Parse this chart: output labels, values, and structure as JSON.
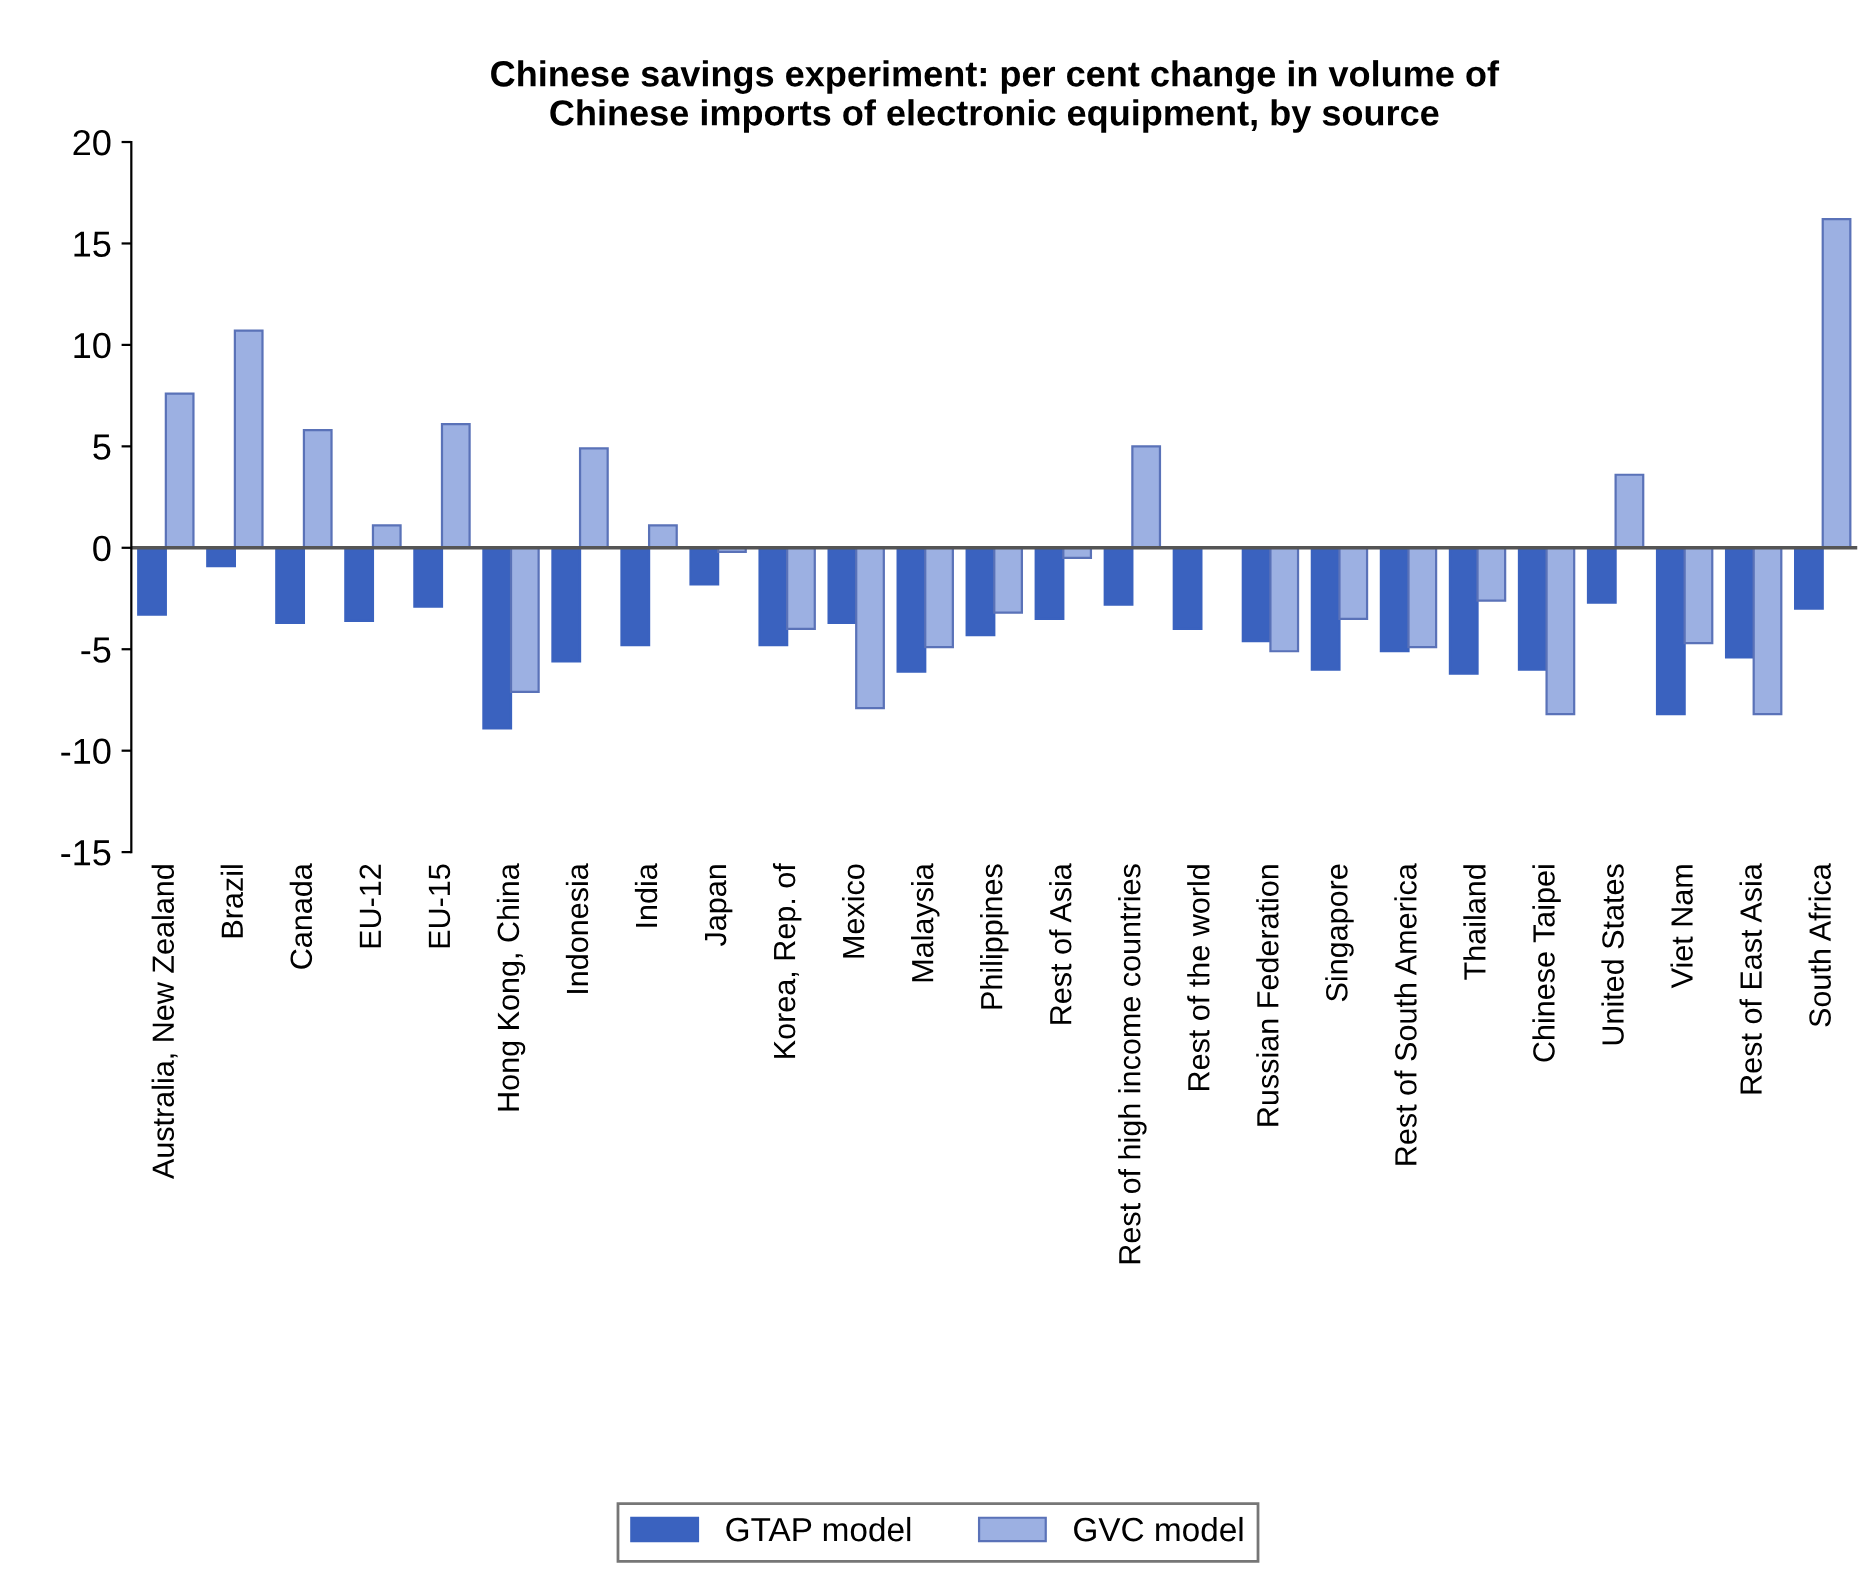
{
  "chart_data": {
    "type": "bar",
    "title": "Chinese savings experiment: per cent change in volume of\nChinese imports of electronic equipment, by source",
    "categories": [
      "Australia, New Zealand",
      "Brazil",
      "Canada",
      "EU-12",
      "EU-15",
      "Hong Kong, China",
      "Indonesia",
      "India",
      "Japan",
      "Korea, Rep. of",
      "Mexico",
      "Malaysia",
      "Philippines",
      "Rest of Asia",
      "Rest of high income countries",
      "Rest of the world",
      "Russian Federation",
      "Singapore",
      "Rest of South America",
      "Thailand",
      "Chinese Taipei",
      "United States",
      "Viet Nam",
      "Rest of East Asia",
      "South Africa"
    ],
    "series": [
      {
        "name": "GTAP model",
        "color": "#3a62bf",
        "values": [
          -3.3,
          -0.9,
          -3.7,
          -3.6,
          -2.9,
          -8.9,
          -5.6,
          -4.8,
          -1.8,
          -4.8,
          -3.7,
          -6.1,
          -4.3,
          -3.5,
          -2.8,
          -4.0,
          -4.6,
          -6.0,
          -5.1,
          -6.2,
          -6.0,
          -2.7,
          -8.2,
          -5.4,
          -3.0
        ]
      },
      {
        "name": "GVC model",
        "color": "#9cb0e2",
        "values": [
          7.6,
          10.7,
          5.8,
          1.1,
          6.1,
          -7.1,
          4.9,
          1.1,
          -0.2,
          -4.0,
          -7.9,
          -4.9,
          -3.2,
          -0.5,
          5.0,
          null,
          -5.1,
          -3.5,
          -4.9,
          -2.6,
          -8.2,
          3.6,
          -4.7,
          -8.2,
          16.2
        ]
      }
    ],
    "ylim": [
      -15,
      20
    ],
    "yticks": [
      -15,
      -10,
      -5,
      0,
      5,
      10,
      15,
      20
    ],
    "ref_lines": [
      {
        "axis": "y",
        "value": 0,
        "color": "#555555"
      }
    ],
    "legend": "bottom",
    "grid": false
  }
}
